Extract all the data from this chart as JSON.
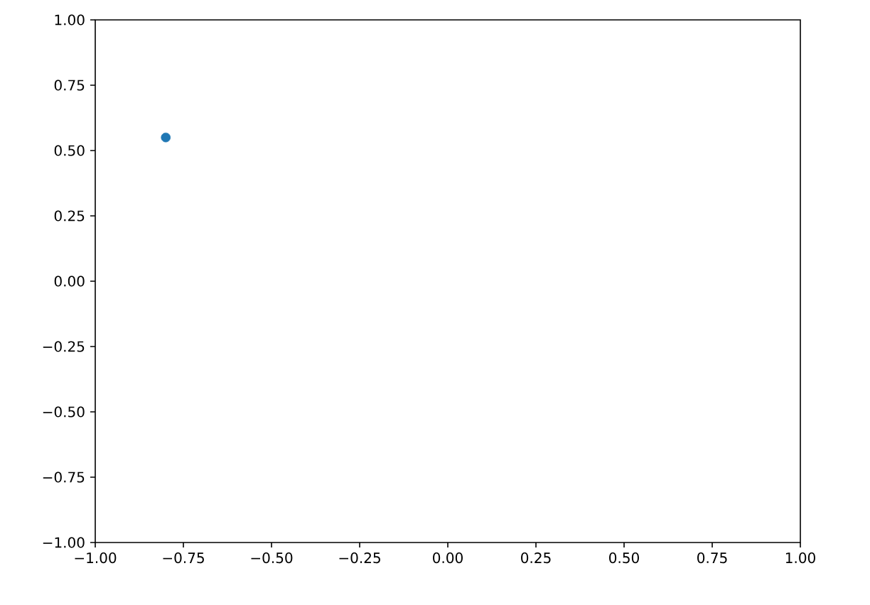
{
  "chart_data": {
    "type": "scatter",
    "x": [
      -0.8
    ],
    "series": [
      {
        "color": "#1f77b4",
        "values": [
          0.55
        ]
      }
    ],
    "marker": "circle",
    "xlim": [
      -1,
      1
    ],
    "ylim": [
      -1,
      1
    ],
    "xticks": [
      {
        "value": -1,
        "label": "−1.00"
      },
      {
        "value": -0.75,
        "label": "−0.75"
      },
      {
        "value": -0.5,
        "label": "−0.50"
      },
      {
        "value": -0.25,
        "label": "−0.25"
      },
      {
        "value": 0,
        "label": "0.00"
      },
      {
        "value": 0.25,
        "label": "0.25"
      },
      {
        "value": 0.5,
        "label": "0.50"
      },
      {
        "value": 0.75,
        "label": "0.75"
      },
      {
        "value": 1,
        "label": "1.00"
      }
    ],
    "yticks": [
      {
        "value": -1,
        "label": "−1.00"
      },
      {
        "value": -0.75,
        "label": "−0.75"
      },
      {
        "value": -0.5,
        "label": "−0.50"
      },
      {
        "value": -0.25,
        "label": "−0.25"
      },
      {
        "value": 0,
        "label": "0.00"
      },
      {
        "value": 0.25,
        "label": "0.25"
      },
      {
        "value": 0.5,
        "label": "0.50"
      },
      {
        "value": 0.75,
        "label": "0.75"
      },
      {
        "value": 1,
        "label": "1.00"
      }
    ]
  }
}
